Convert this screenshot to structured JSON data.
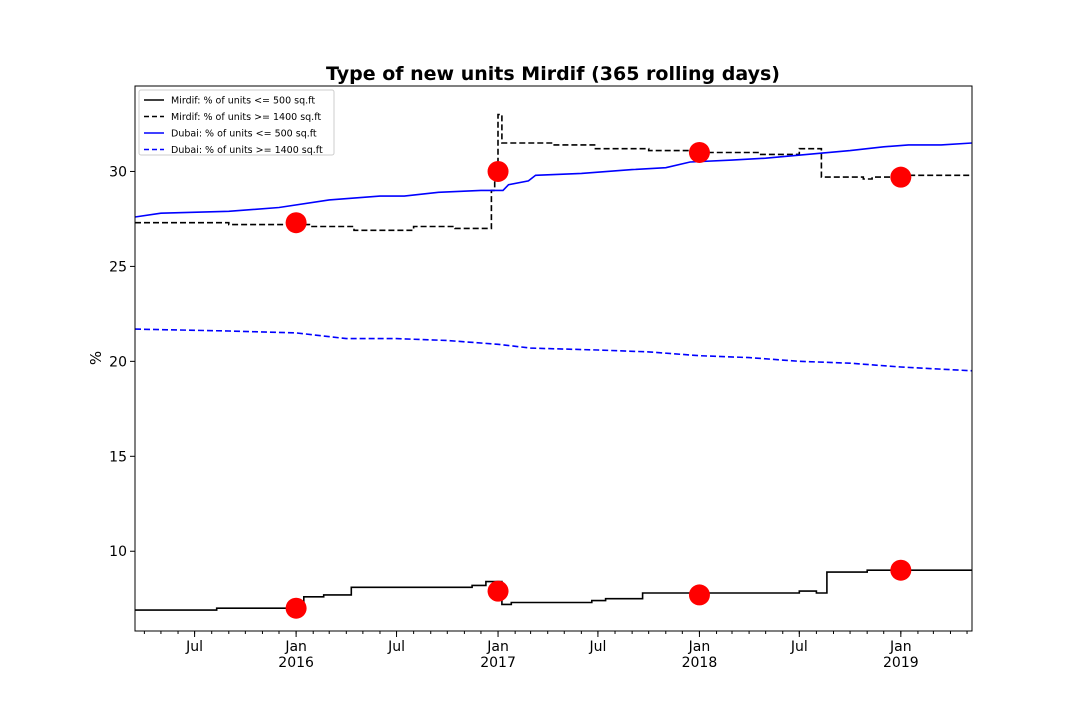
{
  "chart_data": {
    "type": "line",
    "title": "Type of new units Mirdif (365 rolling days)",
    "xlabel": "",
    "ylabel": "%",
    "xlim": [
      "2015-03-15",
      "2019-05-10"
    ],
    "ylim": [
      5.8,
      34.5
    ],
    "yticks": [
      10,
      15,
      20,
      25,
      30
    ],
    "xticks": [
      {
        "date": "2015-07-01",
        "label": "Jul",
        "year": ""
      },
      {
        "date": "2016-01-01",
        "label": "Jan",
        "year": "2016"
      },
      {
        "date": "2016-07-01",
        "label": "Jul",
        "year": ""
      },
      {
        "date": "2017-01-01",
        "label": "Jan",
        "year": "2017"
      },
      {
        "date": "2017-07-01",
        "label": "Jul",
        "year": ""
      },
      {
        "date": "2018-01-01",
        "label": "Jan",
        "year": "2018"
      },
      {
        "date": "2018-07-01",
        "label": "Jul",
        "year": ""
      },
      {
        "date": "2019-01-01",
        "label": "Jan",
        "year": "2019"
      }
    ],
    "grid": false,
    "legend_position": "top-left",
    "series": [
      {
        "name": "Mirdif: % of units <= 500 sq.ft",
        "color": "#000000",
        "linestyle": "solid",
        "step": true,
        "points": [
          [
            "2015-03-15",
            6.9
          ],
          [
            "2015-08-10",
            7.0
          ],
          [
            "2016-01-05",
            7.0
          ],
          [
            "2016-01-15",
            7.6
          ],
          [
            "2016-02-10",
            7.6
          ],
          [
            "2016-02-20",
            7.7
          ],
          [
            "2016-04-10",
            8.1
          ],
          [
            "2016-11-15",
            8.2
          ],
          [
            "2016-12-10",
            8.4
          ],
          [
            "2017-01-08",
            7.2
          ],
          [
            "2017-01-25",
            7.3
          ],
          [
            "2017-06-20",
            7.4
          ],
          [
            "2017-07-15",
            7.5
          ],
          [
            "2017-09-20",
            7.8
          ],
          [
            "2018-05-20",
            7.8
          ],
          [
            "2018-07-01",
            7.9
          ],
          [
            "2018-08-01",
            7.8
          ],
          [
            "2018-08-20",
            8.9
          ],
          [
            "2018-11-01",
            9.0
          ],
          [
            "2018-11-20",
            9.0
          ],
          [
            "2019-05-10",
            9.0
          ]
        ]
      },
      {
        "name": "Mirdif: % of units >= 1400 sq.ft",
        "color": "#000000",
        "linestyle": "dashed",
        "step": true,
        "points": [
          [
            "2015-03-15",
            27.3
          ],
          [
            "2015-09-01",
            27.2
          ],
          [
            "2016-01-25",
            27.1
          ],
          [
            "2016-04-15",
            26.9
          ],
          [
            "2016-08-01",
            27.1
          ],
          [
            "2016-10-15",
            27.0
          ],
          [
            "2016-12-20",
            29.0
          ],
          [
            "2016-12-26",
            30.0
          ],
          [
            "2017-01-01",
            33.0
          ],
          [
            "2017-01-08",
            31.5
          ],
          [
            "2017-04-10",
            31.4
          ],
          [
            "2017-06-25",
            31.2
          ],
          [
            "2017-10-01",
            31.1
          ],
          [
            "2018-01-01",
            31.0
          ],
          [
            "2018-04-20",
            30.9
          ],
          [
            "2018-07-01",
            31.2
          ],
          [
            "2018-08-10",
            29.7
          ],
          [
            "2018-10-25",
            29.6
          ],
          [
            "2018-11-10",
            29.7
          ],
          [
            "2018-12-10",
            29.7
          ],
          [
            "2019-01-01",
            29.8
          ],
          [
            "2019-05-10",
            29.8
          ]
        ]
      },
      {
        "name": "Dubai: % of units <= 500 sq.ft",
        "color": "#0000ff",
        "linestyle": "solid",
        "step": false,
        "points": [
          [
            "2015-03-15",
            27.6
          ],
          [
            "2015-05-01",
            27.8
          ],
          [
            "2015-09-01",
            27.9
          ],
          [
            "2015-12-01",
            28.1
          ],
          [
            "2016-03-01",
            28.5
          ],
          [
            "2016-06-01",
            28.7
          ],
          [
            "2016-07-15",
            28.7
          ],
          [
            "2016-09-15",
            28.9
          ],
          [
            "2016-12-01",
            29.0
          ],
          [
            "2017-01-10",
            29.0
          ],
          [
            "2017-01-20",
            29.3
          ],
          [
            "2017-02-25",
            29.5
          ],
          [
            "2017-03-10",
            29.8
          ],
          [
            "2017-06-01",
            29.9
          ],
          [
            "2017-09-01",
            30.1
          ],
          [
            "2017-11-01",
            30.2
          ],
          [
            "2017-12-15",
            30.5
          ],
          [
            "2018-03-01",
            30.6
          ],
          [
            "2018-05-01",
            30.7
          ],
          [
            "2018-07-15",
            30.9
          ],
          [
            "2018-10-01",
            31.1
          ],
          [
            "2018-12-01",
            31.3
          ],
          [
            "2019-01-15",
            31.4
          ],
          [
            "2019-03-15",
            31.4
          ],
          [
            "2019-05-10",
            31.5
          ]
        ]
      },
      {
        "name": "Dubai: % of units >= 1400 sq.ft",
        "color": "#0000ff",
        "linestyle": "dashed",
        "step": false,
        "points": [
          [
            "2015-03-15",
            21.7
          ],
          [
            "2015-09-01",
            21.6
          ],
          [
            "2016-01-01",
            21.5
          ],
          [
            "2016-04-01",
            21.2
          ],
          [
            "2016-07-01",
            21.2
          ],
          [
            "2016-10-01",
            21.1
          ],
          [
            "2017-01-01",
            20.9
          ],
          [
            "2017-03-01",
            20.7
          ],
          [
            "2017-07-01",
            20.6
          ],
          [
            "2017-10-01",
            20.5
          ],
          [
            "2018-01-01",
            20.3
          ],
          [
            "2018-04-01",
            20.2
          ],
          [
            "2018-07-01",
            20.0
          ],
          [
            "2018-10-01",
            19.9
          ],
          [
            "2019-01-01",
            19.7
          ],
          [
            "2019-05-10",
            19.5
          ]
        ]
      }
    ],
    "markers": {
      "color": "#ff0000",
      "points": [
        [
          "2016-01-01",
          27.3
        ],
        [
          "2016-01-01",
          7.0
        ],
        [
          "2017-01-01",
          30.0
        ],
        [
          "2017-01-01",
          7.9
        ],
        [
          "2018-01-01",
          31.0
        ],
        [
          "2018-01-01",
          7.7
        ],
        [
          "2019-01-01",
          29.7
        ],
        [
          "2019-01-01",
          9.0
        ]
      ]
    }
  }
}
